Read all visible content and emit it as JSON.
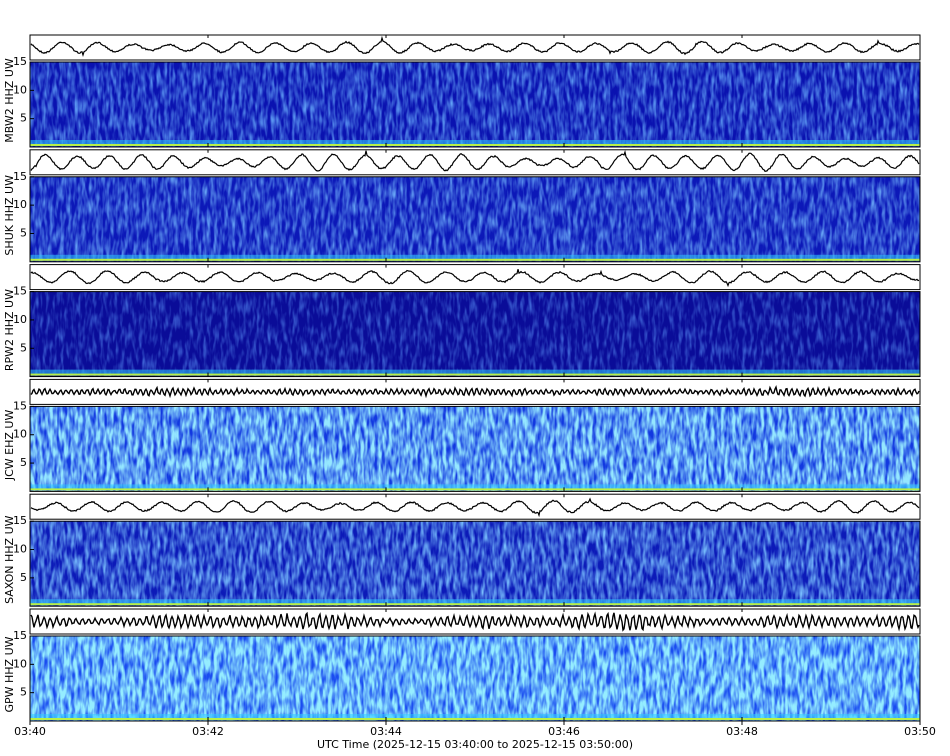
{
  "chart_data": {
    "type": "spectrogram",
    "panels": [
      {
        "ylabel": "MBW2 HHZ UW"
      },
      {
        "ylabel": "SHUK HHZ UW"
      },
      {
        "ylabel": "RPW2 HHZ UW"
      },
      {
        "ylabel": "JCW EHZ UW"
      },
      {
        "ylabel": "SAXON HHZ UW"
      },
      {
        "ylabel": "GPW HHZ UW"
      }
    ],
    "ylim": [
      0,
      15
    ],
    "yticks": [
      5,
      10,
      15
    ],
    "xlim": [
      "2025-12-15T03:40:00Z",
      "2025-12-15T03:50:00Z"
    ],
    "xticks": [
      {
        "value": "2025-12-15T03:40:00Z",
        "label": "03:40"
      },
      {
        "value": "2025-12-15T03:42:00Z",
        "label": "03:42"
      },
      {
        "value": "2025-12-15T03:44:00Z",
        "label": "03:44"
      },
      {
        "value": "2025-12-15T03:46:00Z",
        "label": "03:46"
      },
      {
        "value": "2025-12-15T03:48:00Z",
        "label": "03:48"
      },
      {
        "value": "2025-12-15T03:50:00Z",
        "label": "03:50"
      }
    ],
    "xlabel": "UTC Time (2025-12-15 03:40:00 to 2025-12-15 03:50:00)"
  }
}
